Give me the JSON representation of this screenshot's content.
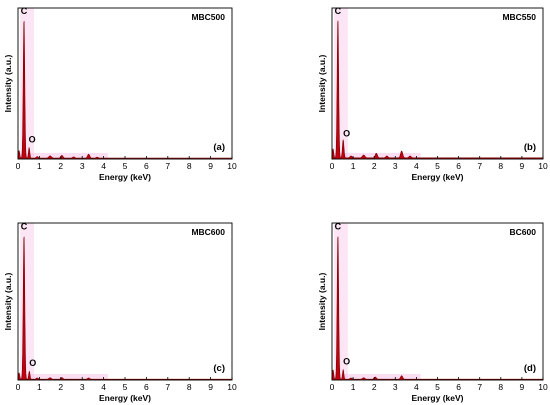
{
  "chart_data": [
    {
      "type": "line",
      "panel_label": "(a)",
      "sample": "MBC500",
      "xlabel": "Energy (keV)",
      "ylabel": "Intensity (a.u.)",
      "xlim": [
        0,
        10
      ],
      "xticks": [
        "0",
        "1",
        "2",
        "3",
        "4",
        "5",
        "6",
        "7",
        "8",
        "9",
        "10"
      ],
      "ylim": [
        0,
        100
      ],
      "peak_labels": [
        {
          "text": "C",
          "x": 0.28,
          "y": 96
        },
        {
          "text": "O",
          "x": 0.52,
          "y": 11
        }
      ],
      "peaks": [
        {
          "x": 0.05,
          "y": 5,
          "w": 0.03
        },
        {
          "x": 0.28,
          "y": 92,
          "w": 0.035
        },
        {
          "x": 0.52,
          "y": 7,
          "w": 0.03
        },
        {
          "x": 0.9,
          "y": 1,
          "w": 0.05
        },
        {
          "x": 1.5,
          "y": 1.5,
          "w": 0.06
        },
        {
          "x": 2.05,
          "y": 1.8,
          "w": 0.05
        },
        {
          "x": 2.6,
          "y": 0.8,
          "w": 0.05
        },
        {
          "x": 3.3,
          "y": 2.6,
          "w": 0.05
        },
        {
          "x": 3.7,
          "y": 0.6,
          "w": 0.05
        }
      ],
      "baseline": 0.6
    },
    {
      "type": "line",
      "panel_label": "(b)",
      "sample": "MBC550",
      "xlabel": "Energy (keV)",
      "ylabel": "Intensity (a.u.)",
      "xlim": [
        0,
        10
      ],
      "xticks": [
        "0",
        "1",
        "2",
        "3",
        "4",
        "5",
        "6",
        "7",
        "8",
        "9",
        "10"
      ],
      "ylim": [
        0,
        100
      ],
      "peak_labels": [
        {
          "text": "C",
          "x": 0.28,
          "y": 96
        },
        {
          "text": "O",
          "x": 0.55,
          "y": 15
        }
      ],
      "peaks": [
        {
          "x": 0.05,
          "y": 6,
          "w": 0.03
        },
        {
          "x": 0.28,
          "y": 92,
          "w": 0.035
        },
        {
          "x": 0.53,
          "y": 12,
          "w": 0.035
        },
        {
          "x": 0.9,
          "y": 1.2,
          "w": 0.05
        },
        {
          "x": 1.5,
          "y": 1.8,
          "w": 0.06
        },
        {
          "x": 2.1,
          "y": 3,
          "w": 0.05
        },
        {
          "x": 2.6,
          "y": 1.2,
          "w": 0.05
        },
        {
          "x": 3.3,
          "y": 4.5,
          "w": 0.05
        },
        {
          "x": 3.7,
          "y": 1.2,
          "w": 0.05
        }
      ],
      "baseline": 0.8
    },
    {
      "type": "line",
      "panel_label": "(c)",
      "sample": "MBC600",
      "xlabel": "Energy (keV)",
      "ylabel": "Intensity (a.u.)",
      "xlim": [
        0,
        10
      ],
      "xticks": [
        "0",
        "1",
        "2",
        "3",
        "4",
        "5",
        "6",
        "7",
        "8",
        "9",
        "10"
      ],
      "ylim": [
        0,
        100
      ],
      "peak_labels": [
        {
          "text": "C",
          "x": 0.28,
          "y": 96
        },
        {
          "text": "O",
          "x": 0.55,
          "y": 9
        }
      ],
      "peaks": [
        {
          "x": 0.05,
          "y": 4,
          "w": 0.03
        },
        {
          "x": 0.28,
          "y": 92,
          "w": 0.035
        },
        {
          "x": 0.53,
          "y": 5,
          "w": 0.03
        },
        {
          "x": 0.9,
          "y": 0.8,
          "w": 0.05
        },
        {
          "x": 1.5,
          "y": 0.9,
          "w": 0.06
        },
        {
          "x": 2.05,
          "y": 1,
          "w": 0.05
        },
        {
          "x": 3.3,
          "y": 0.8,
          "w": 0.05
        }
      ],
      "baseline": 0.5
    },
    {
      "type": "line",
      "panel_label": "(d)",
      "sample": "BC600",
      "xlabel": "Energy (keV)",
      "ylabel": "Intensity (a.u.)",
      "xlim": [
        0,
        10
      ],
      "xticks": [
        "0",
        "1",
        "2",
        "3",
        "4",
        "5",
        "6",
        "7",
        "8",
        "9",
        "10"
      ],
      "ylim": [
        0,
        100
      ],
      "peak_labels": [
        {
          "text": "C",
          "x": 0.28,
          "y": 96
        },
        {
          "text": "O",
          "x": 0.55,
          "y": 10
        }
      ],
      "peaks": [
        {
          "x": 0.05,
          "y": 6,
          "w": 0.03
        },
        {
          "x": 0.28,
          "y": 92,
          "w": 0.035
        },
        {
          "x": 0.53,
          "y": 6,
          "w": 0.03
        },
        {
          "x": 0.9,
          "y": 0.8,
          "w": 0.05
        },
        {
          "x": 1.5,
          "y": 0.9,
          "w": 0.06
        },
        {
          "x": 2.05,
          "y": 1.4,
          "w": 0.05
        },
        {
          "x": 3.3,
          "y": 2.2,
          "w": 0.05
        }
      ],
      "baseline": 0.5
    }
  ],
  "colors": {
    "spectrum_fill": "#c0000f",
    "spectrum_stroke": "#7a0000",
    "glow": "#f7b6e3",
    "axis": "#000000"
  }
}
